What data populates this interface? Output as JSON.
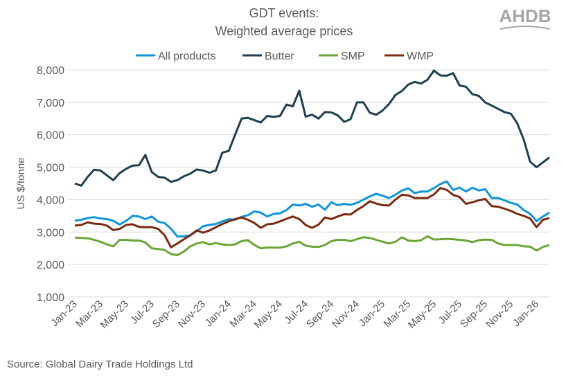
{
  "logo_text": "AHDB",
  "source": "Source: Global Dairy Trade Holdings Ltd",
  "colors": {
    "All products": "#0f95d6",
    "Butter": "#1d3f4f",
    "SMP": "#6aa535",
    "WMP": "#7b2a10",
    "grid": "#d9d9d9",
    "text": "#595959",
    "logo": "#a6a6a6"
  },
  "chart_data": {
    "type": "line",
    "title": [
      "GDT events:",
      "Weighted average prices"
    ],
    "ylabel": "US $/tonne",
    "xlabel": "",
    "ylim": [
      1000,
      8000
    ],
    "yticks": [
      "1,000",
      "2,000",
      "3,000",
      "4,000",
      "5,000",
      "6,000",
      "7,000",
      "8,000"
    ],
    "ytick_values": [
      1000,
      2000,
      3000,
      4000,
      5000,
      6000,
      7000,
      8000
    ],
    "xticks": [
      "Jan-23",
      "Mar-23",
      "May-23",
      "Jul-23",
      "Sep-23",
      "Nov-23",
      "Jan-24",
      "Mar-24",
      "May-24",
      "Jul-24",
      "Sep-24",
      "Nov-24",
      "Jan-25",
      "Mar-25",
      "May-25",
      "Jul-25",
      "Sep-25",
      "Nov-25",
      "Jan-26"
    ],
    "grid": "horizontal",
    "legend": "top",
    "series": [
      {
        "name": "All products",
        "values": [
          3350,
          3380,
          3430,
          3460,
          3420,
          3400,
          3350,
          3230,
          3350,
          3500,
          3480,
          3400,
          3480,
          3320,
          3280,
          3100,
          2860,
          2870,
          2900,
          3030,
          3180,
          3220,
          3250,
          3330,
          3400,
          3380,
          3470,
          3520,
          3640,
          3600,
          3480,
          3560,
          3580,
          3680,
          3850,
          3820,
          3870,
          3780,
          3850,
          3690,
          3920,
          3830,
          3870,
          3840,
          3900,
          4000,
          4100,
          4180,
          4120,
          4050,
          4150,
          4280,
          4350,
          4200,
          4250,
          4250,
          4360,
          4480,
          4560,
          4300,
          4370,
          4250,
          4370,
          4280,
          4320,
          4050,
          4050,
          3980,
          3900,
          3850,
          3680,
          3560,
          3340,
          3480,
          3600
        ]
      },
      {
        "name": "Butter",
        "values": [
          4500,
          4430,
          4700,
          4920,
          4900,
          4750,
          4600,
          4820,
          4950,
          5050,
          5060,
          5380,
          4850,
          4700,
          4680,
          4550,
          4600,
          4720,
          4800,
          4930,
          4900,
          4830,
          4900,
          5450,
          5500,
          6000,
          6500,
          6520,
          6450,
          6380,
          6580,
          6550,
          6580,
          6930,
          6880,
          7360,
          6560,
          6620,
          6500,
          6700,
          6690,
          6600,
          6400,
          6480,
          7000,
          7000,
          6680,
          6620,
          6750,
          6950,
          7230,
          7350,
          7550,
          7630,
          7580,
          7700,
          7980,
          7830,
          7820,
          7900,
          7520,
          7480,
          7250,
          7200,
          7000,
          6900,
          6800,
          6700,
          6650,
          6350,
          5850,
          5170,
          5000,
          5150,
          5300
        ]
      },
      {
        "name": "SMP",
        "values": [
          2830,
          2820,
          2810,
          2760,
          2700,
          2620,
          2560,
          2760,
          2760,
          2740,
          2740,
          2680,
          2500,
          2480,
          2450,
          2320,
          2290,
          2400,
          2560,
          2650,
          2690,
          2620,
          2660,
          2620,
          2600,
          2620,
          2720,
          2750,
          2600,
          2500,
          2520,
          2520,
          2520,
          2560,
          2650,
          2700,
          2580,
          2550,
          2540,
          2600,
          2720,
          2760,
          2760,
          2720,
          2780,
          2840,
          2820,
          2760,
          2700,
          2650,
          2700,
          2840,
          2740,
          2720,
          2750,
          2870,
          2770,
          2780,
          2790,
          2780,
          2760,
          2740,
          2690,
          2750,
          2770,
          2760,
          2650,
          2600,
          2600,
          2600,
          2560,
          2550,
          2430,
          2540,
          2600
        ]
      },
      {
        "name": "WMP",
        "values": [
          3200,
          3220,
          3300,
          3260,
          3250,
          3200,
          3060,
          3100,
          3220,
          3240,
          3160,
          3150,
          3150,
          3100,
          2900,
          2530,
          2650,
          2780,
          2900,
          3050,
          2980,
          3050,
          3150,
          3250,
          3330,
          3400,
          3450,
          3380,
          3280,
          3130,
          3240,
          3260,
          3330,
          3410,
          3480,
          3400,
          3220,
          3130,
          3230,
          3450,
          3400,
          3480,
          3550,
          3540,
          3680,
          3800,
          3950,
          3880,
          3830,
          3820,
          4000,
          4150,
          4130,
          4050,
          4050,
          4050,
          4160,
          4360,
          4300,
          4150,
          4080,
          3870,
          3920,
          3980,
          4020,
          3800,
          3780,
          3720,
          3650,
          3560,
          3500,
          3420,
          3150,
          3380,
          3430
        ]
      }
    ]
  }
}
